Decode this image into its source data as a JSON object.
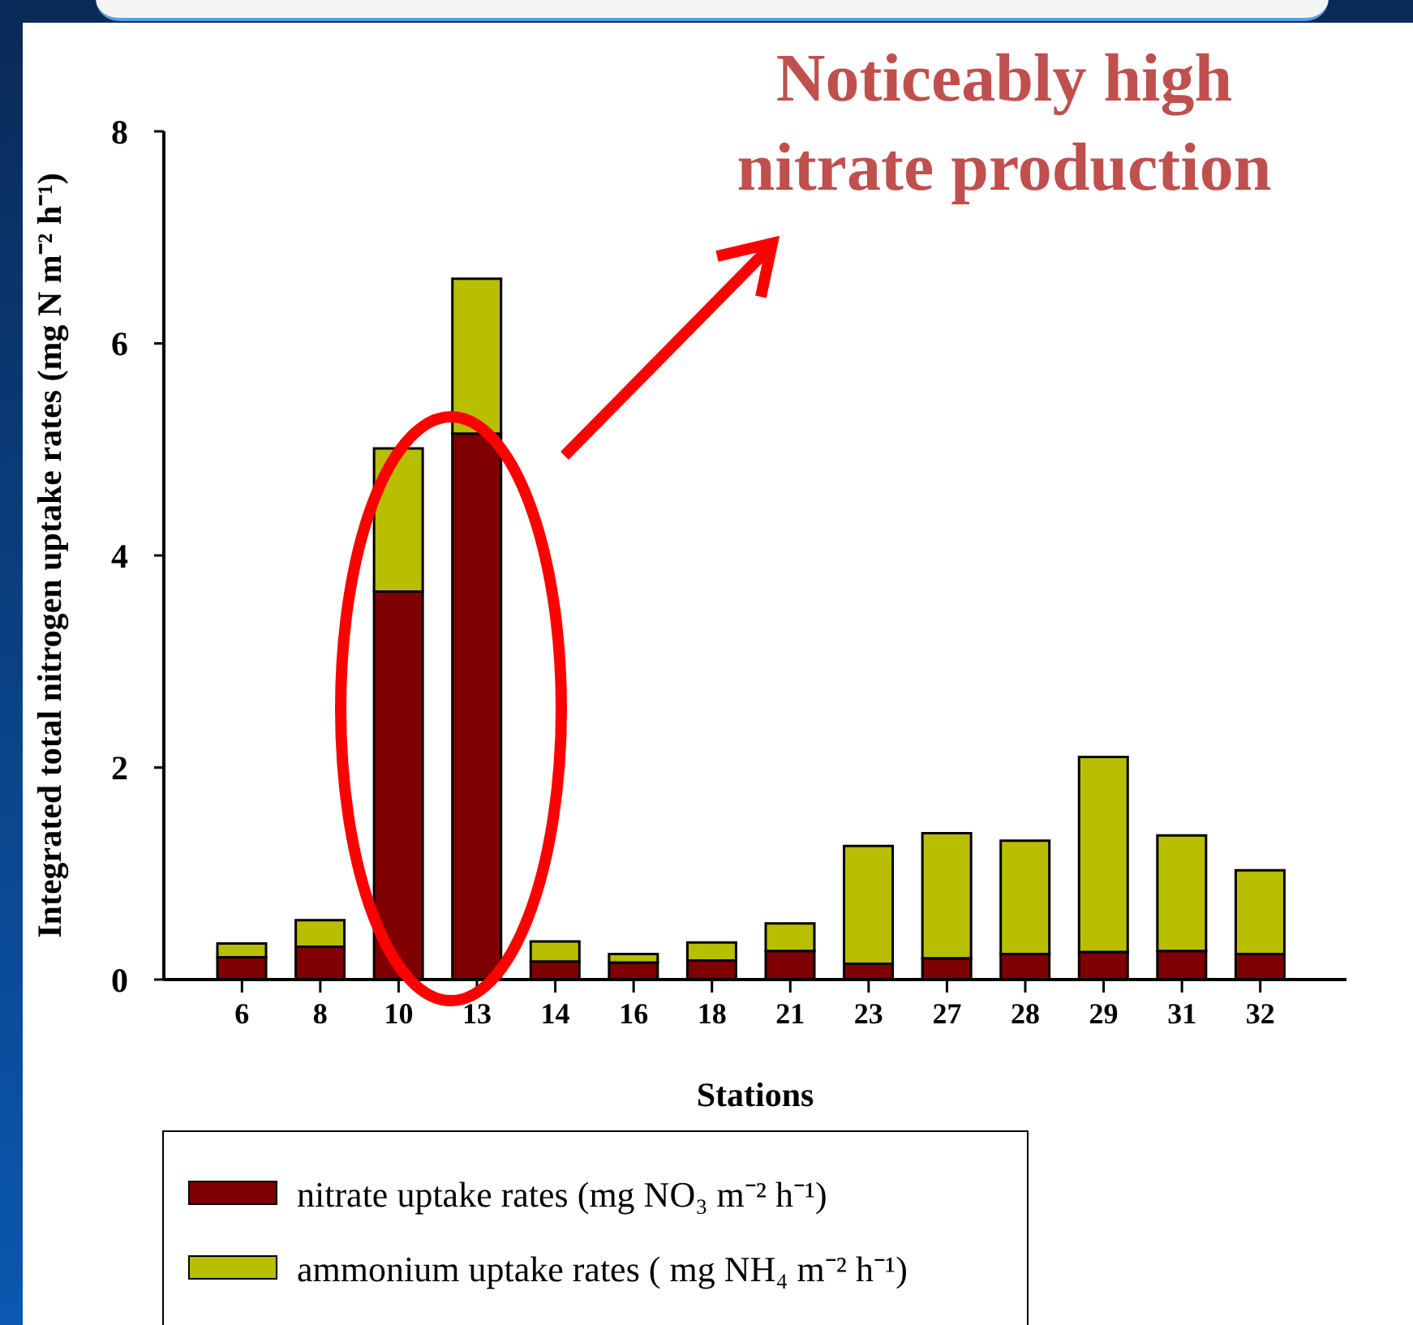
{
  "chart_data": {
    "type": "bar",
    "stacked": true,
    "xlabel": "Stations",
    "ylabel": "Integrated total nitrogen uptake rates (mg N m⁻² h⁻¹)",
    "annotations": [
      "Noticeably high nitrate production"
    ],
    "categories": [
      "6",
      "8",
      "10",
      "13",
      "14",
      "16",
      "18",
      "21",
      "23",
      "27",
      "28",
      "29",
      "31",
      "32"
    ],
    "series": [
      {
        "name": "nitrate uptake rates (mg NO₃ m⁻² h⁻¹)",
        "color": "#7f0000",
        "values": [
          0.21,
          0.31,
          3.66,
          5.15,
          0.17,
          0.16,
          0.18,
          0.27,
          0.15,
          0.2,
          0.24,
          0.26,
          0.27,
          0.24
        ]
      },
      {
        "name": "ammonium uptake rates ( mg NH₄ m⁻² h⁻¹)",
        "color": "#b8be00",
        "values": [
          0.13,
          0.25,
          1.35,
          1.46,
          0.19,
          0.08,
          0.17,
          0.26,
          1.11,
          1.18,
          1.07,
          1.84,
          1.09,
          0.79
        ]
      }
    ],
    "ylim": [
      0,
      8
    ],
    "yticks": [
      0,
      2,
      4,
      6,
      8
    ],
    "legend": "bottom"
  }
}
